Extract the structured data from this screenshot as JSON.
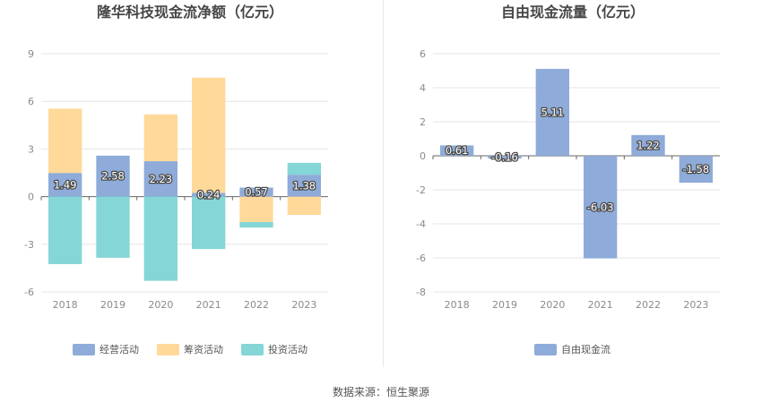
{
  "chart_data": [
    {
      "type": "bar",
      "stacked": true,
      "title": "隆华科技现金流净额（亿元）",
      "categories": [
        "2018",
        "2019",
        "2020",
        "2021",
        "2022",
        "2023"
      ],
      "ylim": [
        -6,
        9
      ],
      "yticks": [
        -6,
        -3,
        0,
        3,
        6,
        9
      ],
      "grid": true,
      "legend_position": "bottom",
      "series": [
        {
          "name": "经营活动",
          "color": "#8eabd9",
          "values": [
            1.49,
            2.58,
            2.23,
            0.24,
            0.57,
            1.38
          ],
          "show_labels": true
        },
        {
          "name": "筹资活动",
          "color": "#ffd99a",
          "values": [
            4.05,
            0.0,
            2.95,
            7.25,
            -1.6,
            -1.15
          ],
          "show_labels": false
        },
        {
          "name": "投资活动",
          "color": "#85d6d6",
          "values": [
            -4.25,
            -3.85,
            -5.3,
            -3.3,
            -0.35,
            0.75
          ],
          "show_labels": false
        }
      ]
    },
    {
      "type": "bar",
      "title": "自由现金流量（亿元）",
      "categories": [
        "2018",
        "2019",
        "2020",
        "2021",
        "2022",
        "2023"
      ],
      "ylim": [
        -8,
        6
      ],
      "yticks": [
        -8,
        -6,
        -4,
        -2,
        0,
        2,
        4,
        6
      ],
      "grid": true,
      "legend_position": "bottom",
      "series": [
        {
          "name": "自由现金流",
          "color": "#8eabd9",
          "values": [
            0.61,
            -0.16,
            5.11,
            -6.03,
            1.22,
            -1.58
          ],
          "show_labels": true
        }
      ]
    }
  ],
  "footer": {
    "source": "数据来源：恒生聚源"
  }
}
